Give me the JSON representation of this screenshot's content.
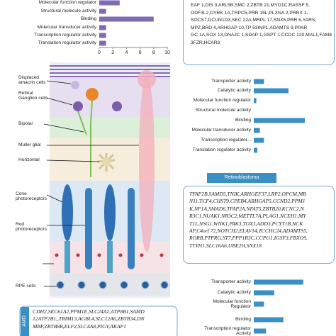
{
  "chart_data": [
    {
      "type": "bar",
      "orientation": "horizontal",
      "categories": [
        "Molecular function regulator",
        "Structural molecule activity",
        "Binding",
        "Molecular transducer activity",
        "Transcription regulator activity",
        "Translation regulator activity"
      ],
      "values": [
        3,
        1,
        8,
        1,
        1,
        1
      ],
      "color": "#7e6bb3",
      "xlim": [
        0,
        10
      ],
      "xticks": [
        0,
        2,
        4,
        6,
        8,
        10
      ]
    },
    {
      "type": "bar",
      "orientation": "horizontal",
      "categories": [
        "Transporter activity",
        "Catalytic activity",
        "Molecular function regulator",
        "Structural molecule activity",
        "Binding",
        "Molecular transducer activity",
        "Transcription regulator...",
        "Translation regulator activity"
      ],
      "values": [
        2,
        6.8,
        0.5,
        0,
        10,
        1.2,
        2,
        0.7
      ],
      "color": "#3a8fc4"
    },
    {
      "type": "bar",
      "orientation": "horizontal",
      "categories": [
        "Transporter activity",
        "Catalytic activity",
        "Molecular function Regulator",
        "Binding",
        "Transcription regulator Activity"
      ],
      "values": [
        9.7,
        4,
        2,
        5.8,
        2.4
      ],
      "color": "#3a8fc4"
    }
  ],
  "genes_top": {
    "lines": [
      "EAF 1,DIS 3,ARL5B,SMC 2,ZBTB 21,MYO1C,RASSF 5,",
      "ODF3L2,DYRK 1A,TRPC5,PRR 15L,PLXNA 2,PRRX 1,",
      "SOCS7,DCUN1D3,SEC 22A,MRPL 17,SNX5,PRR 5,YARS,",
      "MPZ,BRD 4,ARHGAP 10,TP 53INP1,ADAMTS 9,PPAR",
      "GC 1A,SOX 13,DNAJC 1,SDAP 1,GSPT 1,CCDC 120,MAL1,FAM8",
      "3FZR,HCAR3"
    ]
  },
  "retinoblastoma": {
    "title": "Retinoblastoma",
    "lines": [
      "TFAP2B,SAMD5,TNIK,ARHGEF37,LRP2,OPCM,MB",
      "N11,TCF4,CHST9,CPEB4,ARHGAP5,CCND2,PPM1",
      "K,NF1A,SMAD6,TFAP2A,NFAT5,ZBTB20,KCNC2,N",
      "R3C1,NUAK1,NR3C2,METTL7A,PLAG1,NCEH1,MY",
      "T1L,NSG1,WNK1,PAK3,TOX3,ADD3,PCYT1B,NCK",
      "AP,C4orf 72,NOTCH2,ELAV14,ZCCHC24,ADAMTS5,",
      "RORB,PTPRG,ST7,PPP1R3C,CCPG1,IGSF3,FBXO9,",
      "TTYH1,SLC16A6,UBE2H,SNX18"
    ]
  },
  "amd": {
    "title": "AMD",
    "lines": [
      "CDH2,SEC61A2,PPM1E,SLC24A2,ATP8B1,SAMD",
      "12ATP2B1,,TRIM13,AGBL4,SLC12A6,ZBTB34,DN",
      "MBP,ZBTB8B,ELF2,SLC4A8,PIGV,AKAP1"
    ]
  },
  "diagram": {
    "labels": [
      "Displaced amacrin cells",
      "Retinal Ganglion cells",
      "Bipolar",
      "Muller glial",
      "Horizontal",
      "Cone photoreceptors",
      "Rod photoreceptors",
      "RPE cells"
    ]
  }
}
